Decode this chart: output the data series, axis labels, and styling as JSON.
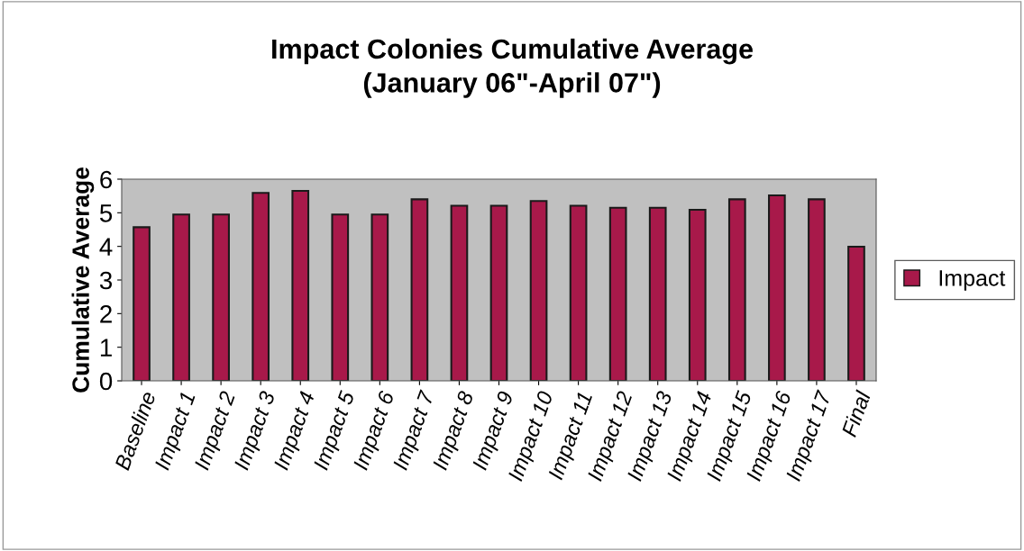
{
  "chart_data": {
    "type": "bar",
    "title": "Impact Colonies Cumulative Average\n(January 06\"-April 07\")",
    "ylabel": "Cumulative Average",
    "categories": [
      "Baseline",
      "Impact 1",
      "Impact 2",
      "Impact 3",
      "Impact 4",
      "Impact 5",
      "Impact 6",
      "Impact 7",
      "Impact 8",
      "Impact 9",
      "Impact 10",
      "Impact 11",
      "Impact 12",
      "Impact 13",
      "Impact 14",
      "Impact 15",
      "Impact 16",
      "Impact 17",
      "Final"
    ],
    "series": [
      {
        "name": "Impact",
        "color": "#a8194a",
        "values": [
          4.57,
          4.95,
          4.95,
          5.59,
          5.65,
          4.95,
          4.95,
          5.4,
          5.21,
          5.21,
          5.35,
          5.21,
          5.15,
          5.15,
          5.09,
          5.4,
          5.52,
          5.4,
          3.99
        ]
      }
    ],
    "ylim": [
      0,
      6
    ],
    "yticks": [
      0,
      1,
      2,
      3,
      4,
      5,
      6
    ],
    "grid": false,
    "legend": "right"
  }
}
